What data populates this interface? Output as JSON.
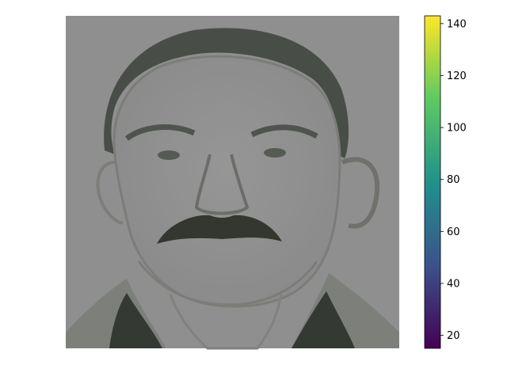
{
  "chart_data": {
    "type": "heatmap",
    "title": "",
    "xlabel": "",
    "ylabel": "",
    "axes_visible": false,
    "image_description_role": "grayscale portrait image",
    "colorbar": {
      "colormap": "viridis",
      "vmin": 15,
      "vmax": 143,
      "ticks": [
        20,
        40,
        60,
        80,
        100,
        120,
        140
      ],
      "tick_labels": [
        "20",
        "40",
        "60",
        "80",
        "100",
        "120",
        "140"
      ],
      "colors": [
        "#440154",
        "#3b528b",
        "#21918c",
        "#5ec962",
        "#fde725"
      ]
    }
  }
}
